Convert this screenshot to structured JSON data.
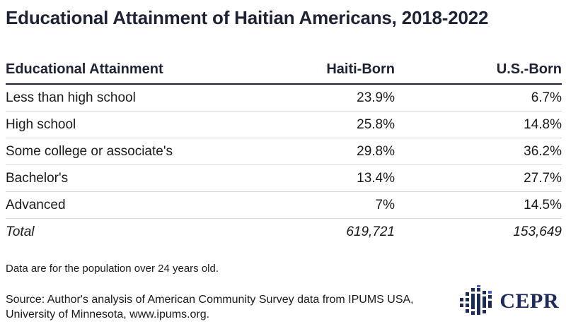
{
  "title": "Educational Attainment of Haitian Americans, 2018-2022",
  "chart_data": {
    "type": "table",
    "columns": [
      "Educational Attainment",
      "Haiti-Born",
      "U.S.-Born"
    ],
    "rows": [
      {
        "label": "Less than high school",
        "haiti_born": "23.9%",
        "us_born": "6.7%"
      },
      {
        "label": "High school",
        "haiti_born": "25.8%",
        "us_born": "14.8%"
      },
      {
        "label": "Some college or associate's",
        "haiti_born": "29.8%",
        "us_born": "36.2%"
      },
      {
        "label": "Bachelor's",
        "haiti_born": "13.4%",
        "us_born": "27.7%"
      },
      {
        "label": "Advanced",
        "haiti_born": "7%",
        "us_born": "14.5%"
      }
    ],
    "total": {
      "label": "Total",
      "haiti_born": "619,721",
      "us_born": "153,649"
    }
  },
  "note": "Data are for the population over 24 years old.",
  "source_line1": "Source: Author's analysis of American Community Survey data from IPUMS USA,",
  "source_line2": "University of Minnesota, www.ipums.org.",
  "logo": {
    "text": "CEPR",
    "icon": "cepr-logo-icon",
    "color": "#1e2a5a",
    "accent": "#4a5fc1"
  }
}
